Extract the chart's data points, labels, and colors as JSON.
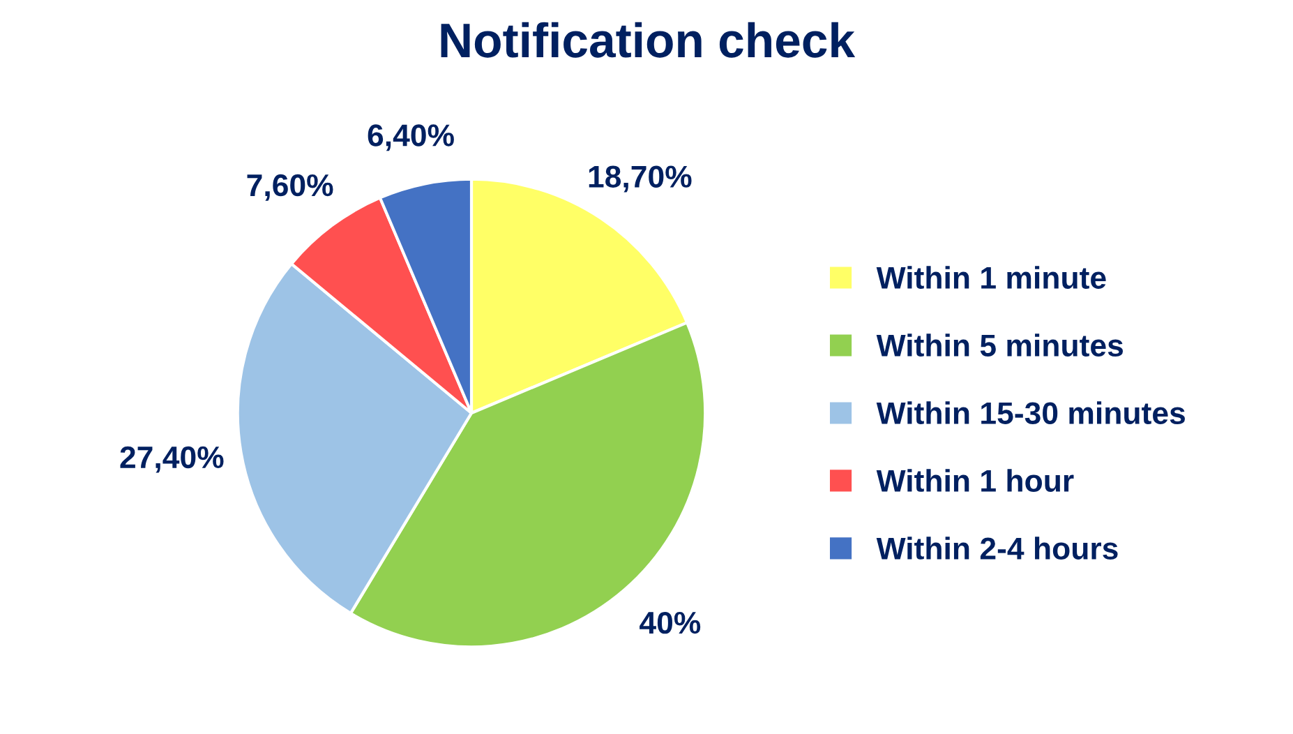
{
  "chart_data": {
    "type": "pie",
    "title": "Notification check",
    "categories": [
      "Within 1 minute",
      "Within 5 minutes",
      "Within 15-30 minutes",
      "Within 1 hour",
      "Within 2-4 hours"
    ],
    "values": [
      18.7,
      40,
      27.4,
      7.6,
      6.4
    ],
    "value_labels": [
      "18,70%",
      "40%",
      "27,40%",
      "7,60%",
      "6,40%"
    ],
    "colors": [
      "#ffff66",
      "#92d050",
      "#9dc3e6",
      "#ff5050",
      "#4472c4"
    ],
    "legend": "right"
  }
}
